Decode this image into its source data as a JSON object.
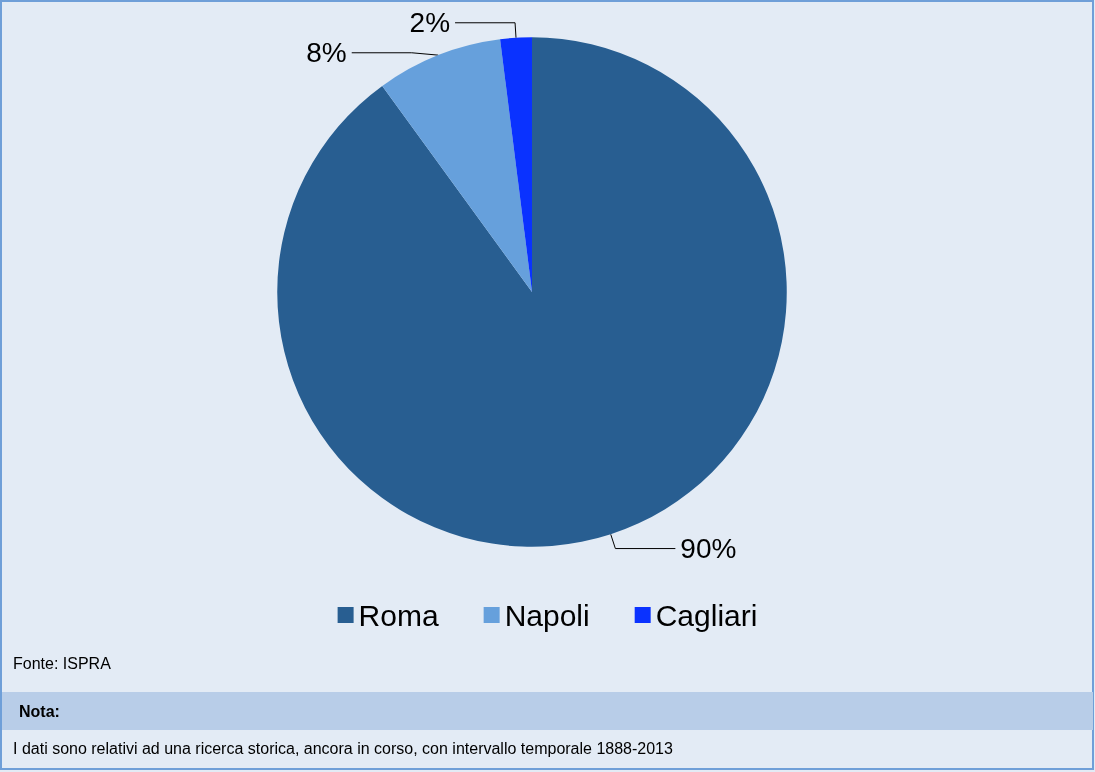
{
  "chart_data": {
    "type": "pie",
    "categories": [
      "Roma",
      "Napoli",
      "Cagliari"
    ],
    "values": [
      90,
      8,
      2
    ],
    "colors": [
      "#285e91",
      "#66a0dc",
      "#0a32ff"
    ],
    "value_labels": [
      "90%",
      "8%",
      "2%"
    ],
    "legend": "bottom",
    "annotations": [
      "Fonte: ISPRA",
      "Nota:",
      "I dati sono relativi ad una ricerca storica, ancora in corso, con intervallo temporale 1888-2013"
    ]
  }
}
